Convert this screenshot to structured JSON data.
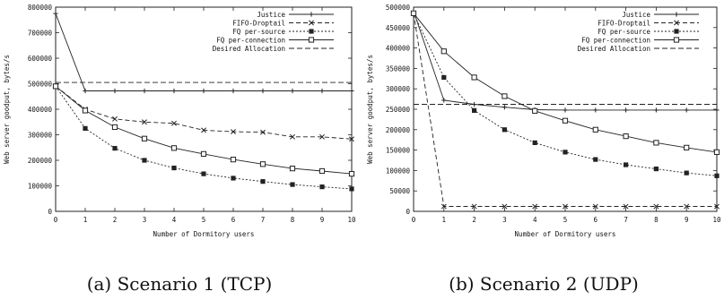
{
  "chart_data": [
    {
      "type": "line",
      "caption": "(a) Scenario 1 (TCP)",
      "xlabel": "Number of Dormitory users",
      "ylabel": "Web server goodput, bytes/s",
      "xlim": [
        0,
        10
      ],
      "ylim": [
        0,
        800000
      ],
      "x": [
        0,
        1,
        2,
        3,
        4,
        5,
        6,
        7,
        8,
        9,
        10
      ],
      "xticks": [
        "0",
        "1",
        "2",
        "3",
        "4",
        "5",
        "6",
        "7",
        "8",
        "9",
        "10"
      ],
      "yticks": [
        "0",
        "100000",
        "200000",
        "300000",
        "400000",
        "500000",
        "600000",
        "700000",
        "800000"
      ],
      "ytick_values": [
        0,
        100000,
        200000,
        300000,
        400000,
        500000,
        600000,
        700000,
        800000
      ],
      "grid": false,
      "legend_position": "top-right",
      "series": [
        {
          "name": "Justice",
          "marker": "plus",
          "dash": "",
          "values": [
            775000,
            472000,
            472000,
            472000,
            472000,
            472000,
            472000,
            472000,
            472000,
            472000,
            472000
          ]
        },
        {
          "name": "FIFO-Droptail",
          "marker": "x",
          "dash": "5,3",
          "values": [
            490000,
            400000,
            362000,
            350000,
            345000,
            318000,
            312000,
            310000,
            292000,
            292000,
            283000
          ]
        },
        {
          "name": "FQ per-source",
          "marker": "filled-square",
          "dash": "2,2",
          "values": [
            490000,
            325000,
            247000,
            200000,
            170000,
            147000,
            130000,
            117000,
            105000,
            96000,
            88000
          ]
        },
        {
          "name": "FQ per-connection",
          "marker": "open-square",
          "dash": "",
          "values": [
            490000,
            395000,
            330000,
            285000,
            248000,
            225000,
            203000,
            185000,
            168000,
            158000,
            147000
          ]
        },
        {
          "name": "Desired Allocation",
          "marker": "none",
          "dash": "6,3",
          "values": [
            505000,
            505000,
            505000,
            505000,
            505000,
            505000,
            505000,
            505000,
            505000,
            505000,
            505000
          ]
        }
      ]
    },
    {
      "type": "line",
      "caption": "(b) Scenario 2 (UDP)",
      "xlabel": "Number of Dormitory users",
      "ylabel": "Web server goodput, bytes/s",
      "xlim": [
        0,
        10
      ],
      "ylim": [
        0,
        500000
      ],
      "x": [
        0,
        1,
        2,
        3,
        4,
        5,
        6,
        7,
        8,
        9,
        10
      ],
      "xticks": [
        "0",
        "1",
        "2",
        "3",
        "4",
        "5",
        "6",
        "7",
        "8",
        "9",
        "10"
      ],
      "yticks": [
        "0",
        "50000",
        "100000",
        "150000",
        "200000",
        "250000",
        "300000",
        "350000",
        "400000",
        "450000",
        "500000"
      ],
      "ytick_values": [
        0,
        50000,
        100000,
        150000,
        200000,
        250000,
        300000,
        350000,
        400000,
        450000,
        500000
      ],
      "grid": false,
      "legend_position": "top-right",
      "series": [
        {
          "name": "Justice",
          "marker": "plus",
          "dash": "",
          "values": [
            490000,
            272000,
            262000,
            255000,
            249000,
            248000,
            248000,
            248000,
            248000,
            248000,
            248000
          ]
        },
        {
          "name": "FIFO-Droptail",
          "marker": "x",
          "dash": "5,3",
          "values": [
            485000,
            12000,
            12000,
            12000,
            12000,
            12000,
            12000,
            12000,
            12000,
            12000,
            12000
          ]
        },
        {
          "name": "FQ per-source",
          "marker": "filled-square",
          "dash": "2,2",
          "values": [
            485000,
            328000,
            247000,
            200000,
            168000,
            145000,
            127000,
            114000,
            104000,
            94000,
            87000
          ]
        },
        {
          "name": "FQ per-connection",
          "marker": "open-square",
          "dash": "",
          "values": [
            485000,
            392000,
            328000,
            282000,
            246000,
            222000,
            200000,
            184000,
            168000,
            156000,
            145000
          ]
        },
        {
          "name": "Desired Allocation",
          "marker": "none",
          "dash": "6,3",
          "values": [
            262000,
            262000,
            262000,
            262000,
            262000,
            262000,
            262000,
            262000,
            262000,
            262000,
            262000
          ]
        }
      ]
    }
  ]
}
